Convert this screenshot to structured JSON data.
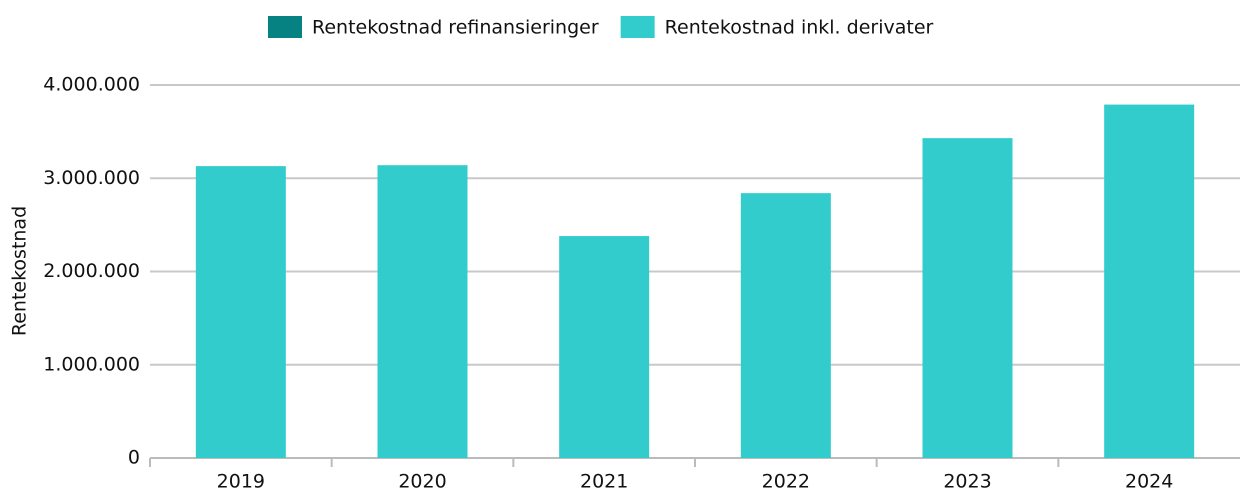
{
  "chart_data": {
    "type": "bar",
    "y_label": "Rentekostnad",
    "categories": [
      "2019",
      "2020",
      "2021",
      "2022",
      "2023",
      "2024"
    ],
    "series": [
      {
        "name": "Rentekostnad refinansieringer",
        "color": "#078282",
        "values": [
          null,
          null,
          null,
          null,
          null,
          null
        ]
      },
      {
        "name": "Rentekostnad inkl. derivater",
        "color": "#33cccc",
        "values": [
          3130000,
          3140000,
          2380000,
          2840000,
          3430000,
          3790000
        ]
      }
    ],
    "ylim": [
      0,
      4000000
    ],
    "yticks": [
      0,
      {
        "value": 1000000,
        "label": "1.000.000"
      },
      {
        "value": 2000000,
        "label": "2.000.000"
      },
      {
        "value": 3000000,
        "label": "3.000.000"
      },
      {
        "value": 4000000,
        "label": "4.000.000"
      }
    ],
    "grid": true,
    "legend": "top"
  }
}
